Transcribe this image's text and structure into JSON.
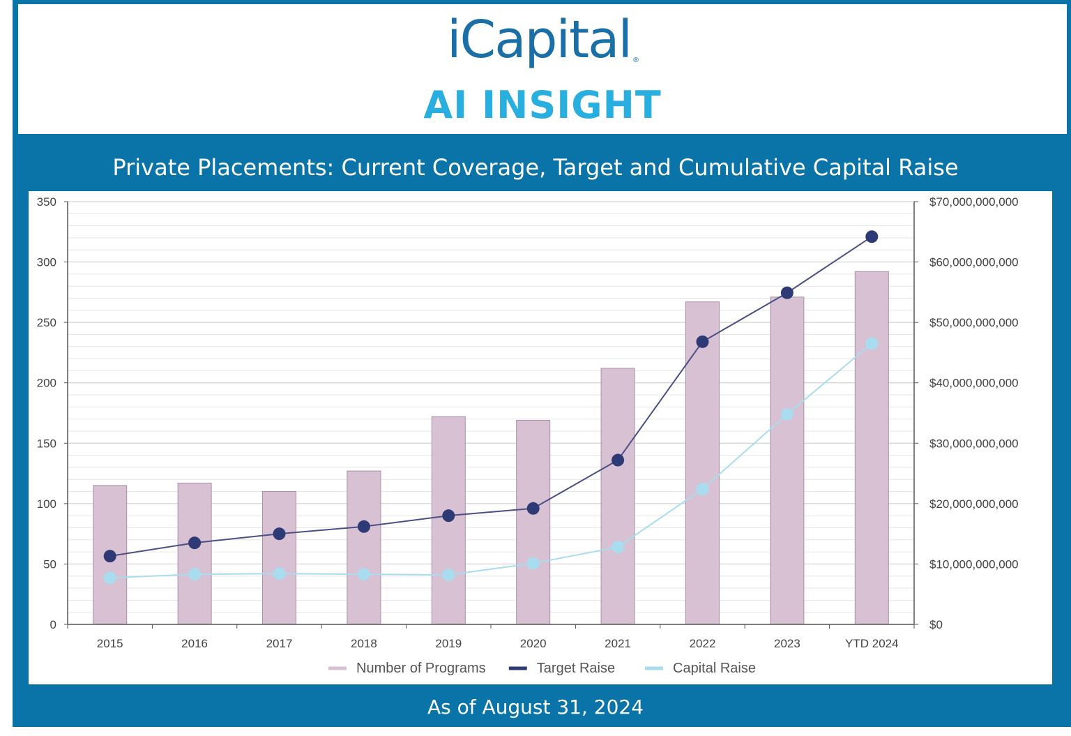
{
  "brand": {
    "logo_text": "iCapital",
    "registered_mark": "®",
    "subbrand": "AI INSIGHT",
    "logo_color": "#1a70a6",
    "subbrand_color": "#29aee0"
  },
  "frame_color": "#0a73a8",
  "footer": {
    "as_of": "As of August 31, 2024"
  },
  "chart_data": {
    "type": "bar",
    "title": "Private Placements: Current Coverage, Target and Cumulative Capital Raise",
    "categories": [
      "2015",
      "2016",
      "2017",
      "2018",
      "2019",
      "2020",
      "2021",
      "2022",
      "2023",
      "YTD 2024"
    ],
    "y_left": {
      "min": 0,
      "max": 350,
      "ticks": [
        "0",
        "50",
        "100",
        "150",
        "200",
        "250",
        "300",
        "350"
      ]
    },
    "y_right": {
      "min": 0,
      "max": 70000000000,
      "ticks": [
        "$0",
        "$10,000,000,000",
        "$20,000,000,000",
        "$30,000,000,000",
        "$40,000,000,000",
        "$50,000,000,000",
        "$60,000,000,000",
        "$70,000,000,000"
      ]
    },
    "grid": true,
    "legend_position": "bottom",
    "series": [
      {
        "name": "Number of Programs",
        "type": "bar",
        "axis": "left",
        "color": "#d7c1d3",
        "values": [
          115,
          117,
          110,
          127,
          172,
          169,
          212,
          267,
          271,
          292
        ]
      },
      {
        "name": "Target Raise",
        "type": "line",
        "axis": "right",
        "color": "#2e3a75",
        "values": [
          11300000000,
          13500000000,
          15000000000,
          16200000000,
          18000000000,
          19200000000,
          27200000000,
          46800000000,
          54900000000,
          64200000000
        ]
      },
      {
        "name": "Capital Raise",
        "type": "line",
        "axis": "right",
        "color": "#a9dcef",
        "values": [
          7700000000,
          8300000000,
          8400000000,
          8300000000,
          8200000000,
          10100000000,
          12800000000,
          22400000000,
          34800000000,
          46500000000
        ]
      }
    ]
  }
}
